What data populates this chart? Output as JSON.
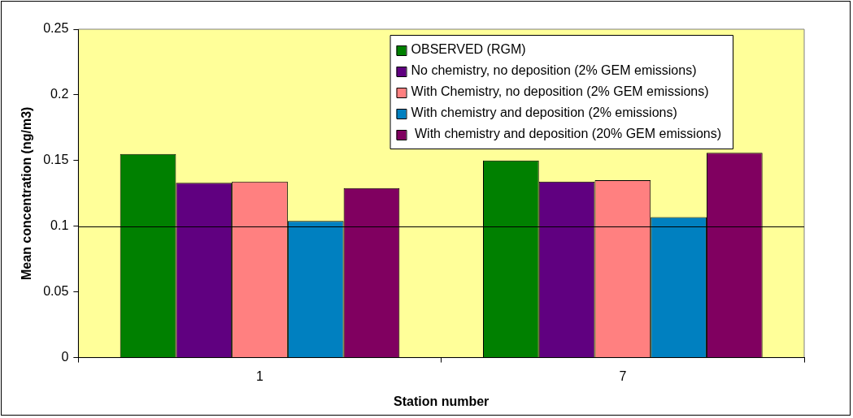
{
  "chart_data": {
    "type": "bar",
    "xlabel": "Station number",
    "ylabel": "Mean concentration (ng/m3)",
    "categories": [
      "1",
      "7"
    ],
    "series": [
      {
        "name": "OBSERVED (RGM)",
        "color": "#008000",
        "values": [
          0.155,
          0.15
        ]
      },
      {
        "name": "No chemistry, no deposition (2% GEM emissions)",
        "color": "#600080",
        "values": [
          0.133,
          0.134
        ]
      },
      {
        "name": "With Chemistry, no deposition (2% GEM emissions)",
        "color": "#ff8080",
        "values": [
          0.134,
          0.135
        ]
      },
      {
        "name": "With chemistry and deposition (2% emissions)",
        "color": "#0080c0",
        "values": [
          0.104,
          0.107
        ]
      },
      {
        "name": " With chemistry and deposition (20% GEM emissions)",
        "color": "#800060",
        "values": [
          0.129,
          0.156
        ]
      }
    ],
    "ylim": [
      0,
      0.25
    ],
    "yticks": [
      0,
      0.05,
      0.1,
      0.15,
      0.2,
      0.25
    ],
    "grid": false,
    "legend": "top right",
    "ref_lines": [
      {
        "axis": "y",
        "value": 0.1,
        "color": "#000000"
      }
    ]
  }
}
